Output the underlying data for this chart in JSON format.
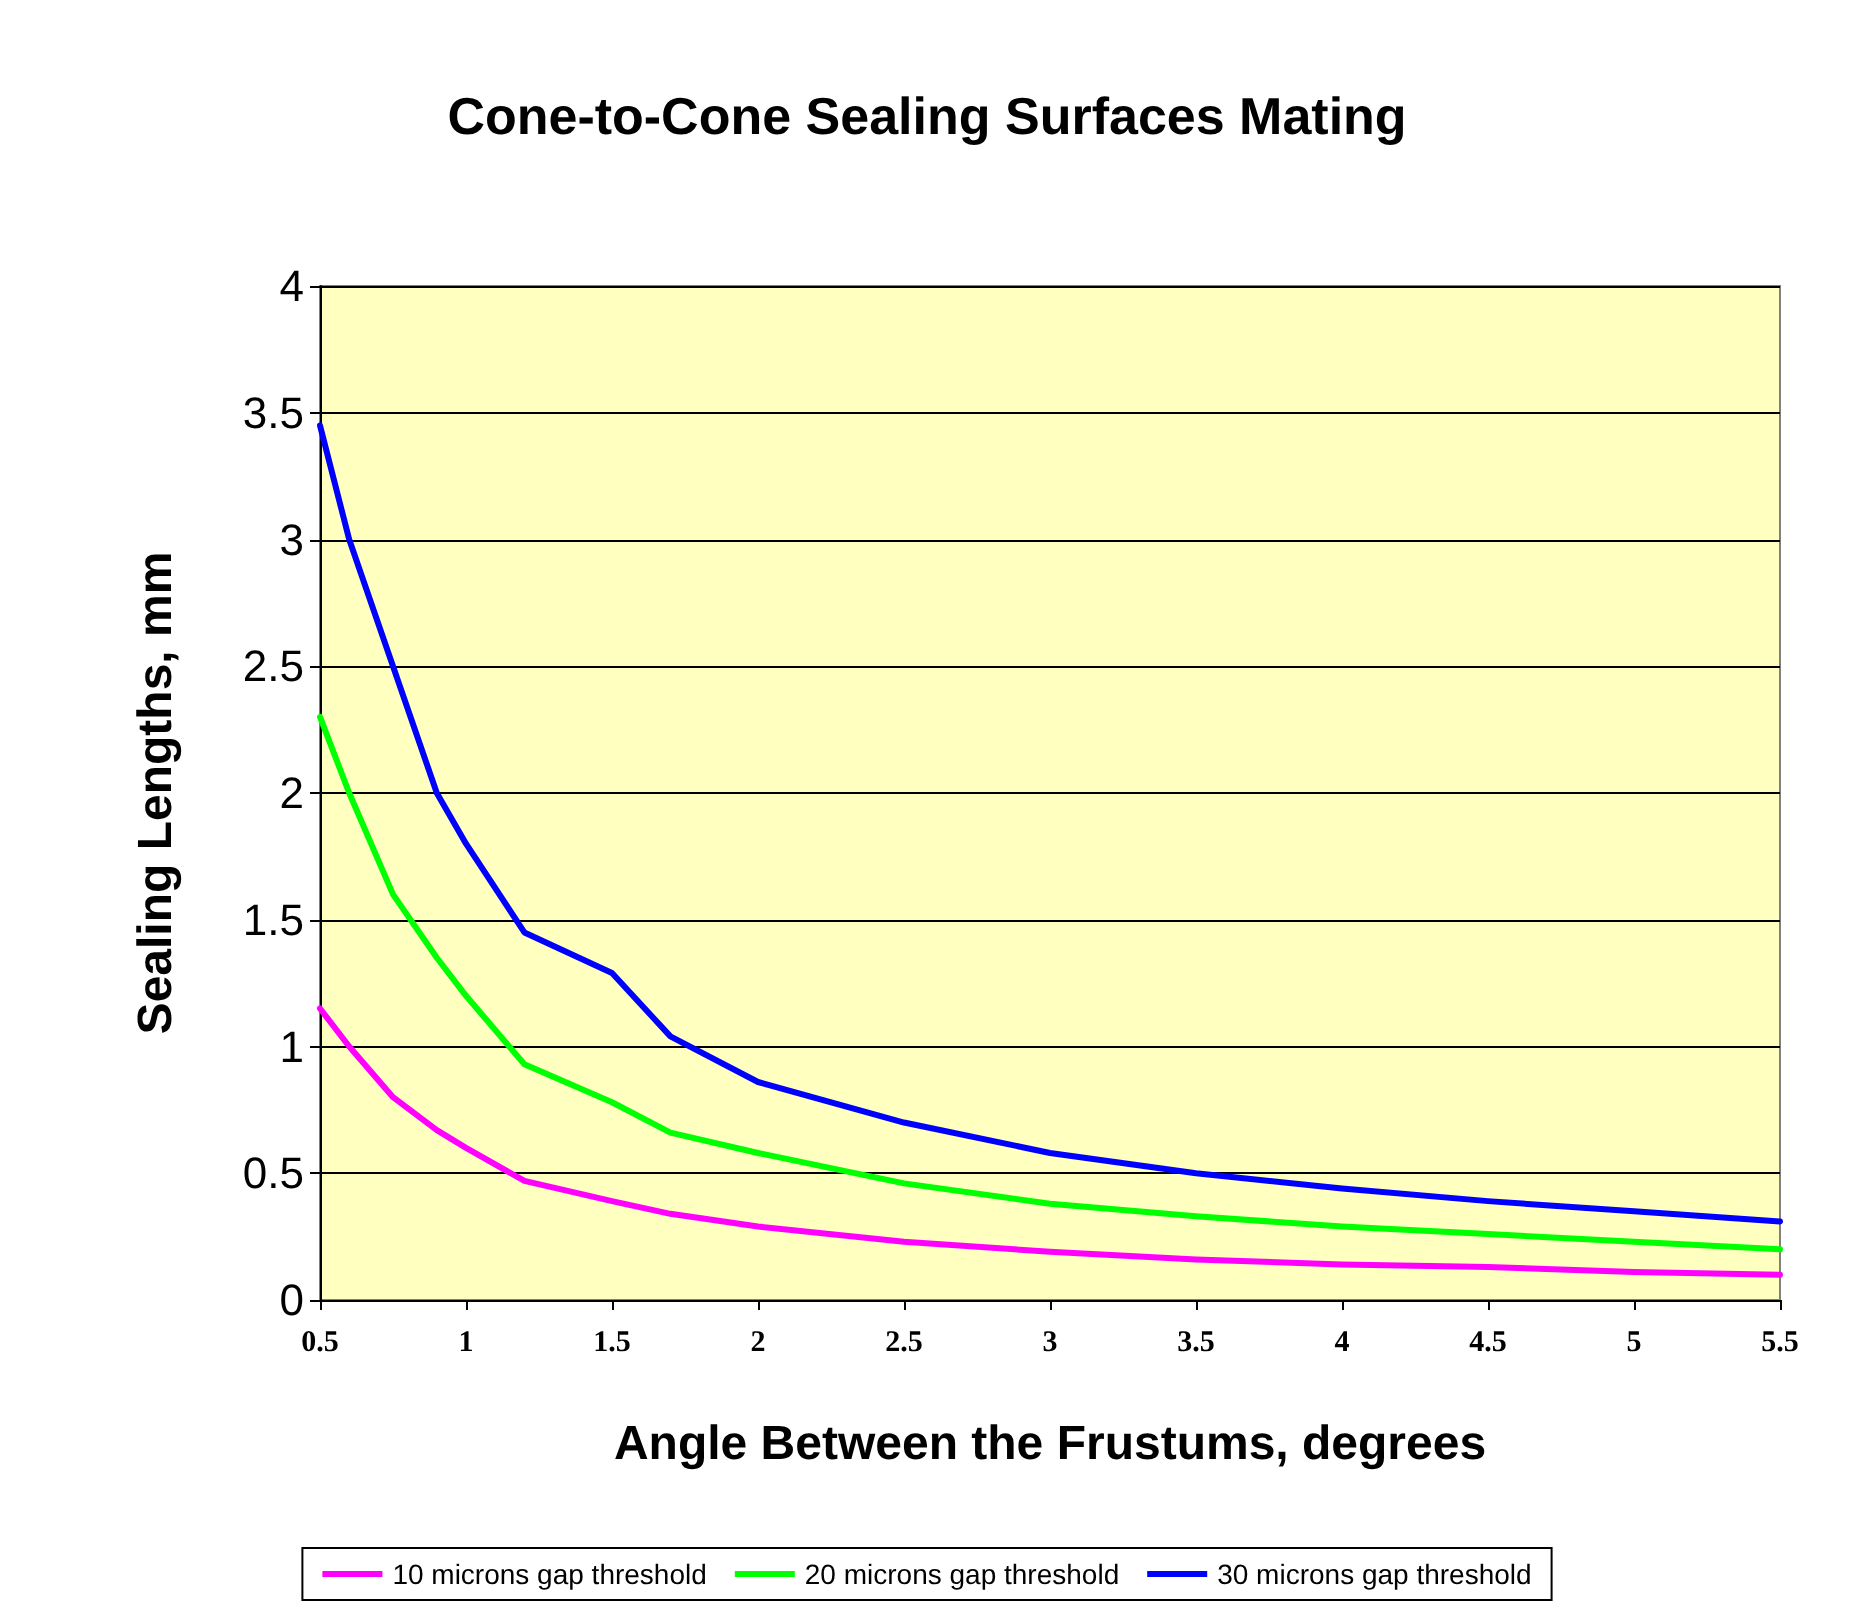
{
  "chart_data": {
    "type": "line",
    "title": "Cone-to-Cone Sealing Surfaces Mating",
    "xlabel": "Angle Between the Frustums, degrees",
    "ylabel": "Sealing Lengths, mm",
    "x": [
      0.5,
      0.6,
      0.75,
      0.9,
      1,
      1.2,
      1.5,
      1.7,
      2,
      2.5,
      3,
      3.5,
      4,
      4.5,
      5,
      5.5
    ],
    "series": [
      {
        "name": "10 microns gap threshold",
        "color": "#ff00ff",
        "values": [
          1.15,
          1.0,
          0.8,
          0.67,
          0.6,
          0.47,
          0.39,
          0.34,
          0.29,
          0.23,
          0.19,
          0.16,
          0.14,
          0.13,
          0.11,
          0.1
        ]
      },
      {
        "name": "20 microns gap threshold",
        "color": "#00ff00",
        "values": [
          2.3,
          2.0,
          1.6,
          1.35,
          1.2,
          0.93,
          0.78,
          0.66,
          0.58,
          0.46,
          0.38,
          0.33,
          0.29,
          0.26,
          0.23,
          0.2
        ]
      },
      {
        "name": "30 microns gap threshold",
        "color": "#0000ff",
        "values": [
          3.45,
          3.0,
          2.5,
          2.0,
          1.8,
          1.45,
          1.29,
          1.04,
          0.86,
          0.7,
          0.58,
          0.5,
          0.44,
          0.39,
          0.35,
          0.31
        ]
      }
    ],
    "xlim": [
      0.5,
      5.5
    ],
    "xticks": [
      0.5,
      1,
      1.5,
      2,
      2.5,
      3,
      3.5,
      4,
      4.5,
      5,
      5.5
    ],
    "ylim": [
      0,
      4
    ],
    "yticks": [
      0,
      0.5,
      1,
      1.5,
      2,
      2.5,
      3,
      3.5,
      4
    ],
    "grid": "y",
    "legend": "bottom",
    "marker": "none",
    "line_style": "solid"
  }
}
